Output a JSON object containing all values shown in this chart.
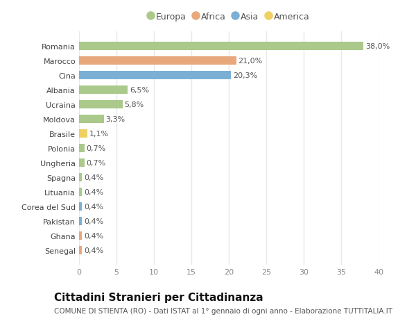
{
  "categories": [
    "Senegal",
    "Ghana",
    "Pakistan",
    "Corea del Sud",
    "Lituania",
    "Spagna",
    "Ungheria",
    "Polonia",
    "Brasile",
    "Moldova",
    "Ucraina",
    "Albania",
    "Cina",
    "Marocco",
    "Romania"
  ],
  "values": [
    0.4,
    0.4,
    0.4,
    0.4,
    0.4,
    0.4,
    0.7,
    0.7,
    1.1,
    3.3,
    5.8,
    6.5,
    20.3,
    21.0,
    38.0
  ],
  "labels": [
    "0,4%",
    "0,4%",
    "0,4%",
    "0,4%",
    "0,4%",
    "0,4%",
    "0,7%",
    "0,7%",
    "1,1%",
    "3,3%",
    "5,8%",
    "6,5%",
    "20,3%",
    "21,0%",
    "38,0%"
  ],
  "colors": [
    "#e8a87c",
    "#e8a87c",
    "#7bafd4",
    "#7bafd4",
    "#aac98a",
    "#aac98a",
    "#aac98a",
    "#aac98a",
    "#f0d060",
    "#aac98a",
    "#aac98a",
    "#aac98a",
    "#7bafd4",
    "#e8a87c",
    "#aac98a"
  ],
  "legend_labels": [
    "Europa",
    "Africa",
    "Asia",
    "America"
  ],
  "legend_colors": [
    "#aac98a",
    "#e8a87c",
    "#7bafd4",
    "#f0d060"
  ],
  "title": "Cittadini Stranieri per Cittadinanza",
  "subtitle": "COMUNE DI STIENTA (RO) - Dati ISTAT al 1° gennaio di ogni anno - Elaborazione TUTTITALIA.IT",
  "xlim": [
    0,
    40
  ],
  "xticks": [
    0,
    5,
    10,
    15,
    20,
    25,
    30,
    35,
    40
  ],
  "background_color": "#ffffff",
  "grid_color": "#e8e8e8",
  "bar_height": 0.55,
  "title_fontsize": 11,
  "subtitle_fontsize": 7.5,
  "label_fontsize": 8,
  "tick_fontsize": 8,
  "legend_fontsize": 9
}
